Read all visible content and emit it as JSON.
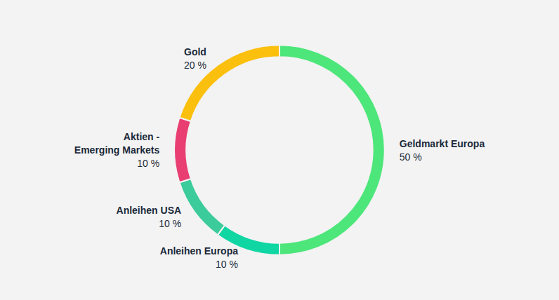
{
  "chart_data": {
    "type": "pie",
    "categories": [
      "Geldmarkt Europa",
      "Anleihen Europa",
      "Anleihen USA",
      "Aktien -\nEmerging Markets",
      "Gold"
    ],
    "values": [
      50,
      10,
      10,
      10,
      20
    ],
    "value_labels": [
      "50 %",
      "10 %",
      "10 %",
      "10 %",
      "20 %"
    ],
    "colors": [
      "#4de67a",
      "#0fd6a2",
      "#3ccb9b",
      "#e83e72",
      "#fbbf0e"
    ],
    "data_labels": true
  }
}
